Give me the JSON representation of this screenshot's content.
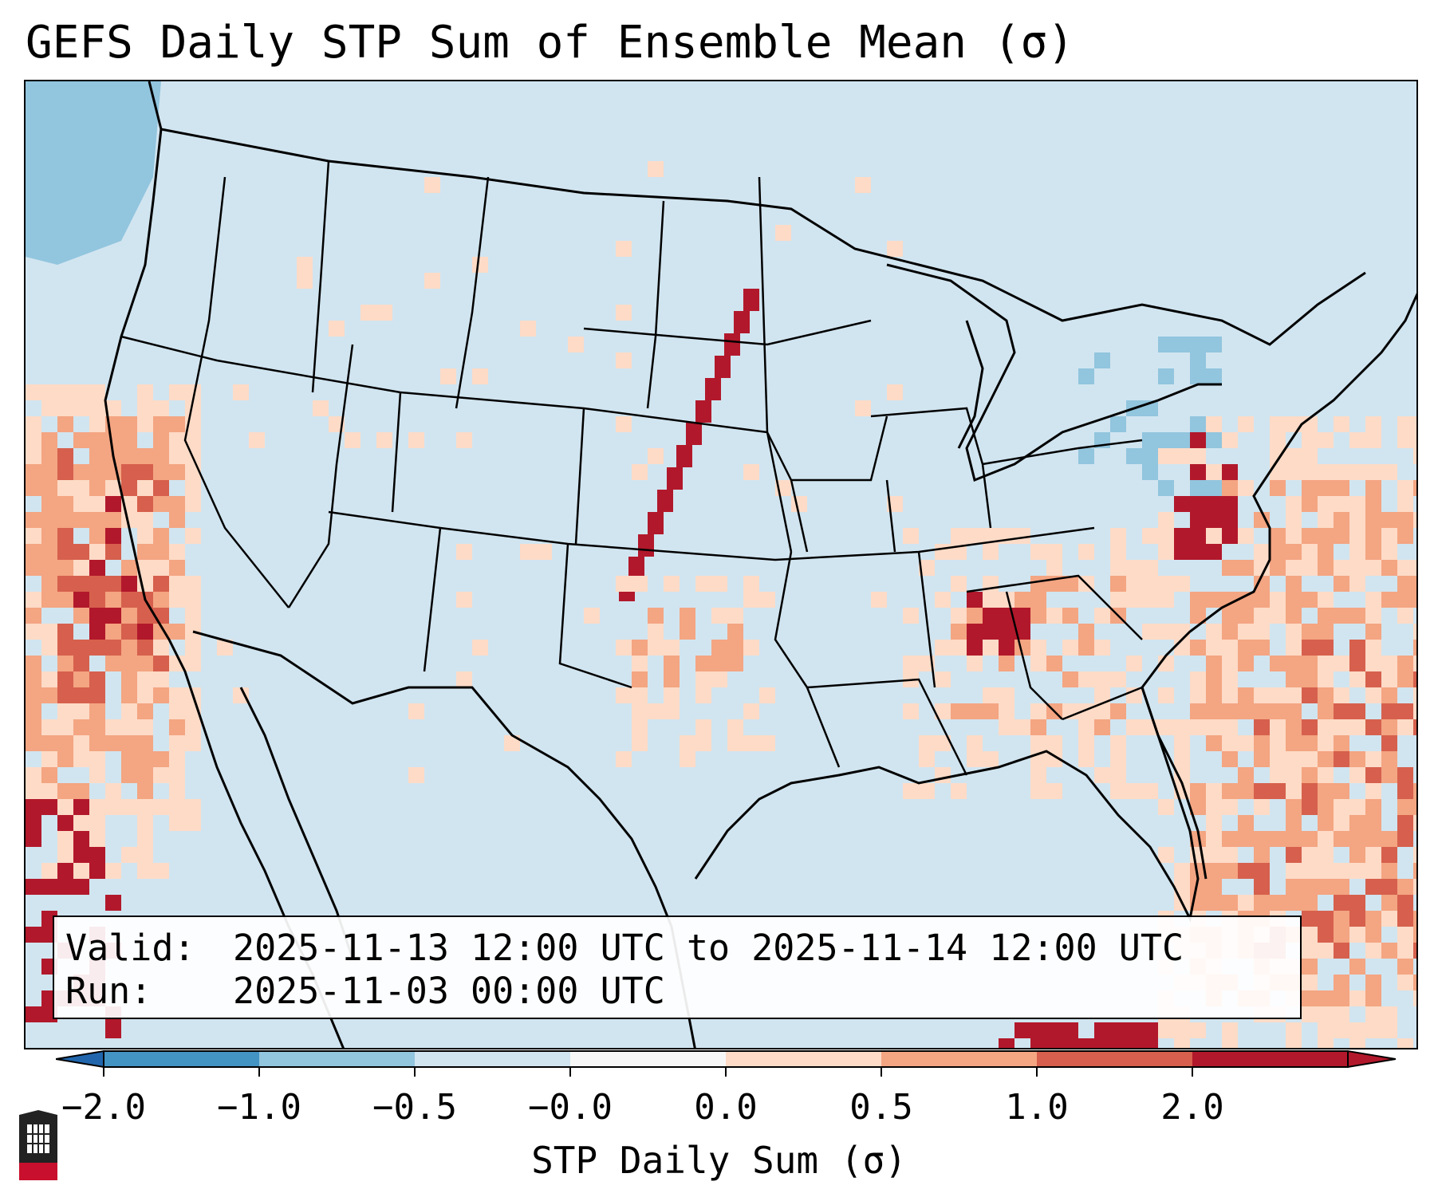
{
  "title": "GEFS Daily STP Sum of Ensemble Mean (σ)",
  "info_box": {
    "valid_label": "Valid:",
    "valid_value": "2025-11-13 12:00 UTC to 2025-11-14 12:00 UTC",
    "run_label": "Run:",
    "run_value": "2025-11-03 00:00 UTC"
  },
  "colorbar": {
    "label": "STP Daily Sum (σ)",
    "ticks": [
      "−2.0",
      "−1.0",
      "−0.5",
      "−0.0",
      "0.0",
      "0.5",
      "1.0",
      "2.0"
    ],
    "bin_colors": [
      "#4393c3",
      "#92c5de",
      "#d1e5f0",
      "#f7f7f7",
      "#fddbc7",
      "#f4a582",
      "#d6604d",
      "#b2182b"
    ],
    "under_color": "#2166ac",
    "over_color": "#b2182b"
  },
  "map": {
    "background_color": "#d1e5f0",
    "border_color": "#000000",
    "pixel_classes": {
      "light": "#fddbc7",
      "medium": "#f4a582",
      "strong": "#d6604d",
      "extreme": "#b2182b",
      "neg_light": "#92c5de"
    }
  },
  "logo": {
    "name": "NIU"
  }
}
